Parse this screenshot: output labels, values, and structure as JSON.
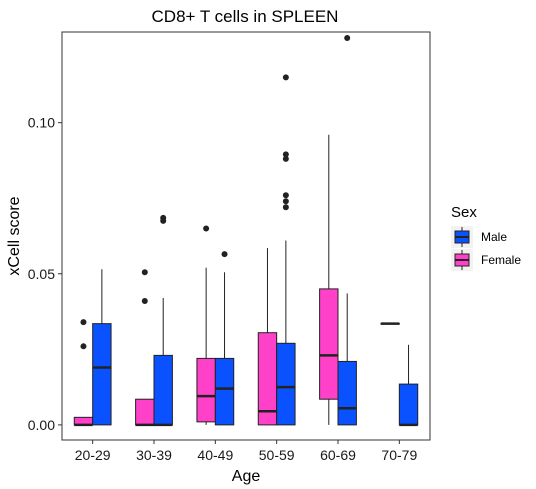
{
  "chart_data": {
    "type": "boxplot",
    "title": "CD8+ T cells in SPLEEN",
    "xlabel": "Age",
    "ylabel": "xCell score",
    "categories": [
      "20-29",
      "30-39",
      "40-49",
      "50-59",
      "60-69",
      "70-79"
    ],
    "ylim": [
      -0.005,
      0.13
    ],
    "yticks": [
      0.0,
      0.05,
      0.1
    ],
    "ytick_labels": [
      "0.00",
      "0.05",
      "0.10"
    ],
    "grid": false,
    "legend": {
      "title": "Sex",
      "placement": "right",
      "entries": [
        {
          "label": "Male",
          "color": "#0a52ff"
        },
        {
          "label": "Female",
          "color": "#ff40c8"
        }
      ]
    },
    "series": [
      {
        "name": "Female",
        "color": "#ff40c8",
        "boxes": [
          {
            "category": "20-29",
            "min": 0.0,
            "q1": 0.0,
            "median": 0.0,
            "q3": 0.0025,
            "max": 0.0025,
            "outliers": [
              0.026,
              0.034
            ]
          },
          {
            "category": "30-39",
            "min": 0.0,
            "q1": 0.0,
            "median": 0.0,
            "q3": 0.0085,
            "max": 0.0085,
            "outliers": [
              0.041,
              0.0505
            ]
          },
          {
            "category": "40-49",
            "min": 0.0,
            "q1": 0.001,
            "median": 0.0095,
            "q3": 0.022,
            "max": 0.052,
            "outliers": [
              0.065
            ]
          },
          {
            "category": "50-59",
            "min": 0.0,
            "q1": 0.0,
            "median": 0.0045,
            "q3": 0.0305,
            "max": 0.0585,
            "outliers": []
          },
          {
            "category": "60-69",
            "min": 0.0,
            "q1": 0.0085,
            "median": 0.023,
            "q3": 0.045,
            "max": 0.096,
            "outliers": []
          },
          {
            "category": "70-79",
            "min": 0.0335,
            "q1": 0.0335,
            "median": 0.0335,
            "q3": 0.0335,
            "max": 0.0335,
            "outliers": []
          }
        ]
      },
      {
        "name": "Male",
        "color": "#0a52ff",
        "boxes": [
          {
            "category": "20-29",
            "min": 0.0,
            "q1": 0.0,
            "median": 0.019,
            "q3": 0.0335,
            "max": 0.0515,
            "outliers": []
          },
          {
            "category": "30-39",
            "min": 0.0,
            "q1": 0.0,
            "median": 0.0,
            "q3": 0.023,
            "max": 0.042,
            "outliers": [
              0.0675,
              0.0685
            ]
          },
          {
            "category": "40-49",
            "min": 0.0,
            "q1": 0.0,
            "median": 0.012,
            "q3": 0.022,
            "max": 0.0505,
            "outliers": [
              0.0565
            ]
          },
          {
            "category": "50-59",
            "min": 0.0,
            "q1": 0.0,
            "median": 0.0125,
            "q3": 0.027,
            "max": 0.061,
            "outliers": [
              0.072,
              0.074,
              0.076,
              0.088,
              0.0895,
              0.115
            ]
          },
          {
            "category": "60-69",
            "min": 0.0,
            "q1": 0.0,
            "median": 0.0055,
            "q3": 0.021,
            "max": 0.0435,
            "outliers": [
              0.128
            ]
          },
          {
            "category": "70-79",
            "min": 0.0,
            "q1": 0.0,
            "median": 0.0,
            "q3": 0.0135,
            "max": 0.0265,
            "outliers": []
          }
        ]
      }
    ]
  }
}
